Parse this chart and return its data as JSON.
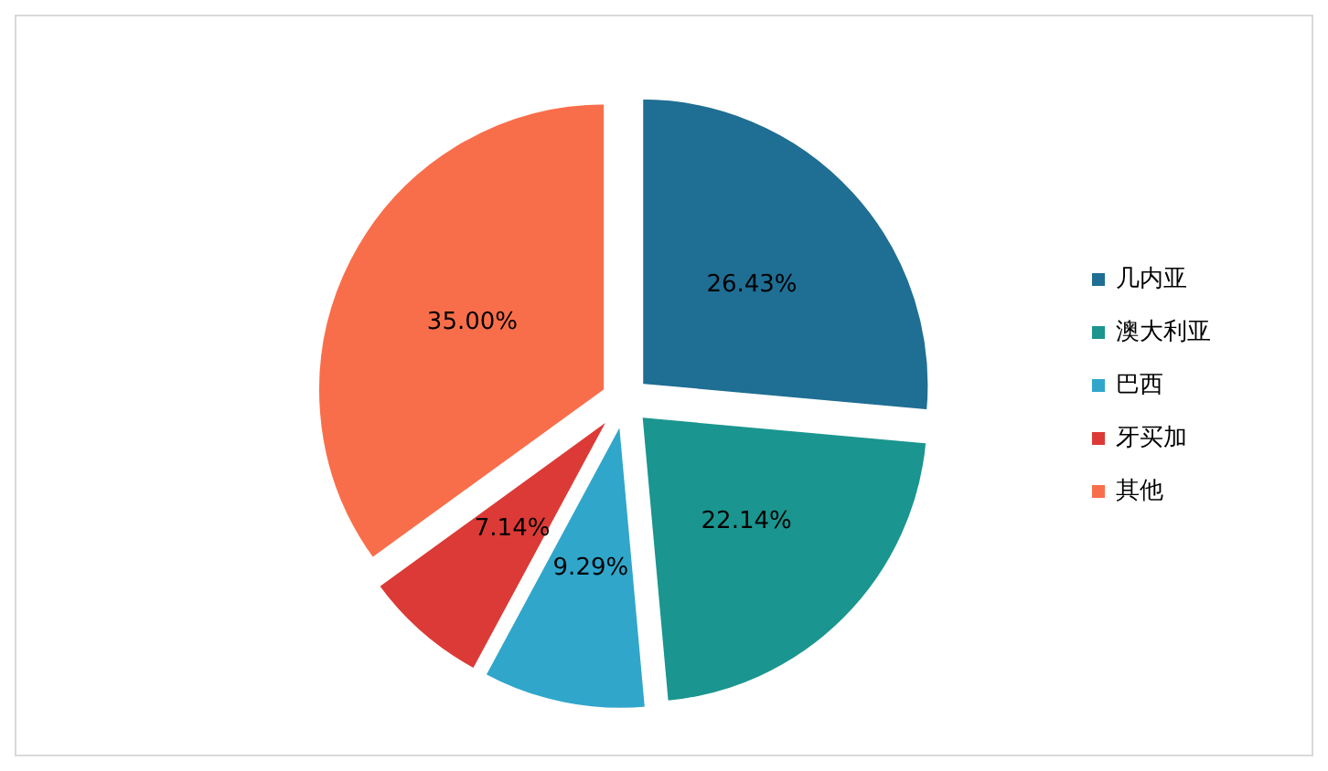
{
  "chart_data": {
    "type": "pie",
    "categories": [
      "几内亚",
      "澳大利亚",
      "巴西",
      "牙买加",
      "其他"
    ],
    "values": [
      26.43,
      22.14,
      9.29,
      7.14,
      35.0
    ],
    "colors": [
      "#1f6e94",
      "#1a958f",
      "#30a6cb",
      "#dc3a36",
      "#f96e4a"
    ],
    "value_labels": [
      "26.43%",
      "22.14%",
      "9.29%",
      "7.14%",
      "35.00%"
    ],
    "legend": "right"
  }
}
